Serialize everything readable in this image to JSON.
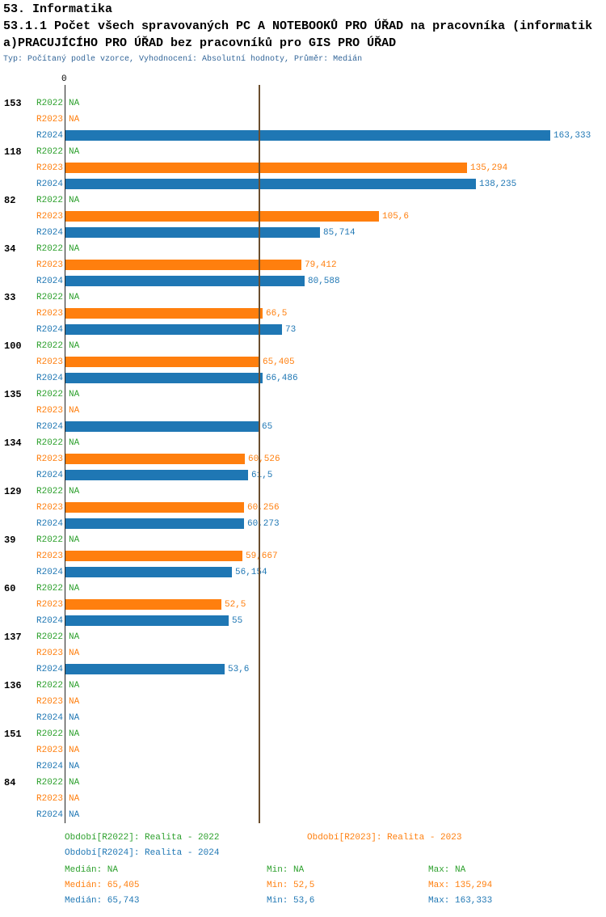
{
  "title": {
    "line1": "53. Informatika",
    "line2": "53.1.1 Počet všech spravovaných PC A NOTEBOOKŮ PRO ÚŘAD na pracovníka (informatik",
    "line3": "a)PRACUJÍCÍHO PRO ÚŘAD bez pracovníků pro GIS PRO ÚŘAD",
    "subtitle": "Typ: Počítaný podle vzorce, Vyhodnocení: Absolutní hodnoty, Průměr: Medián"
  },
  "axis": {
    "zero_label": "0"
  },
  "colors": {
    "r2022": "#2ca02c",
    "r2023": "#ff7f0e",
    "r2024": "#1f77b4",
    "median_line": "#6b4e2e",
    "subtitle": "#336699",
    "axis": "#222222"
  },
  "chart_data": {
    "type": "bar",
    "orientation": "horizontal",
    "title": "53.1.1 Počet všech spravovaných PC A NOTEBOOKŮ PRO ÚŘAD na pracovníka (informatika) PRACUJÍCÍHO PRO ÚŘAD bez pracovníků pro GIS PRO ÚŘAD",
    "x_axis": {
      "zero_label": "0",
      "min": 0,
      "max": 163.333,
      "grid": false
    },
    "series_labels": [
      "R2022",
      "R2023",
      "R2024"
    ],
    "series_keys": [
      "2022",
      "2023",
      "2024"
    ],
    "max_value": 163.333,
    "median_lines": [
      65.405,
      65.743
    ],
    "groups": [
      {
        "id": "153",
        "rows": [
          {
            "v": null,
            "t": "NA"
          },
          {
            "v": null,
            "t": "NA"
          },
          {
            "v": 163.333,
            "t": "163,333"
          }
        ]
      },
      {
        "id": "118",
        "rows": [
          {
            "v": null,
            "t": "NA"
          },
          {
            "v": 135.294,
            "t": "135,294"
          },
          {
            "v": 138.235,
            "t": "138,235"
          }
        ]
      },
      {
        "id": "82",
        "rows": [
          {
            "v": null,
            "t": "NA"
          },
          {
            "v": 105.6,
            "t": "105,6"
          },
          {
            "v": 85.714,
            "t": "85,714"
          }
        ]
      },
      {
        "id": "34",
        "rows": [
          {
            "v": null,
            "t": "NA"
          },
          {
            "v": 79.412,
            "t": "79,412"
          },
          {
            "v": 80.588,
            "t": "80,588"
          }
        ]
      },
      {
        "id": "33",
        "rows": [
          {
            "v": null,
            "t": "NA"
          },
          {
            "v": 66.5,
            "t": "66,5"
          },
          {
            "v": 73,
            "t": "73"
          }
        ]
      },
      {
        "id": "100",
        "rows": [
          {
            "v": null,
            "t": "NA"
          },
          {
            "v": 65.405,
            "t": "65,405"
          },
          {
            "v": 66.486,
            "t": "66,486"
          }
        ]
      },
      {
        "id": "135",
        "rows": [
          {
            "v": null,
            "t": "NA"
          },
          {
            "v": null,
            "t": "NA"
          },
          {
            "v": 65,
            "t": "65"
          }
        ]
      },
      {
        "id": "134",
        "rows": [
          {
            "v": null,
            "t": "NA"
          },
          {
            "v": 60.526,
            "t": "60,526"
          },
          {
            "v": 61.5,
            "t": "61,5"
          }
        ]
      },
      {
        "id": "129",
        "rows": [
          {
            "v": null,
            "t": "NA"
          },
          {
            "v": 60.256,
            "t": "60,256"
          },
          {
            "v": 60.273,
            "t": "60,273"
          }
        ]
      },
      {
        "id": "39",
        "rows": [
          {
            "v": null,
            "t": "NA"
          },
          {
            "v": 59.667,
            "t": "59,667"
          },
          {
            "v": 56.154,
            "t": "56,154"
          }
        ]
      },
      {
        "id": "60",
        "rows": [
          {
            "v": null,
            "t": "NA"
          },
          {
            "v": 52.5,
            "t": "52,5"
          },
          {
            "v": 55,
            "t": "55"
          }
        ]
      },
      {
        "id": "137",
        "rows": [
          {
            "v": null,
            "t": "NA"
          },
          {
            "v": null,
            "t": "NA"
          },
          {
            "v": 53.6,
            "t": "53,6"
          }
        ]
      },
      {
        "id": "136",
        "rows": [
          {
            "v": null,
            "t": "NA"
          },
          {
            "v": null,
            "t": "NA"
          },
          {
            "v": null,
            "t": "NA"
          }
        ]
      },
      {
        "id": "151",
        "rows": [
          {
            "v": null,
            "t": "NA"
          },
          {
            "v": null,
            "t": "NA"
          },
          {
            "v": null,
            "t": "NA"
          }
        ]
      },
      {
        "id": "84",
        "rows": [
          {
            "v": null,
            "t": "NA"
          },
          {
            "v": null,
            "t": "NA"
          },
          {
            "v": null,
            "t": "NA"
          }
        ]
      }
    ]
  },
  "legend": {
    "r2022": "Období[R2022]: Realita - 2022",
    "r2023": "Období[R2023]: Realita - 2023",
    "r2024": "Období[R2024]: Realita - 2024"
  },
  "stats": {
    "r2022": {
      "median": "Medián: NA",
      "min": "Min: NA",
      "max": "Max: NA"
    },
    "r2023": {
      "median": "Medián: 65,405",
      "min": "Min: 52,5",
      "max": "Max: 135,294"
    },
    "r2024": {
      "median": "Medián: 65,743",
      "min": "Min: 53,6",
      "max": "Max: 163,333"
    }
  }
}
